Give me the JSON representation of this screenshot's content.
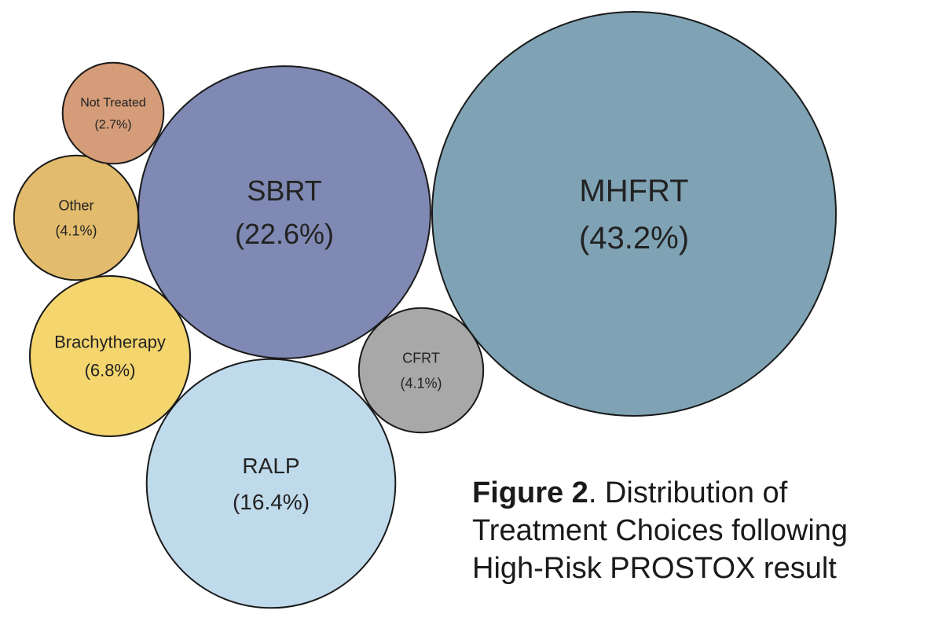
{
  "chart_data": {
    "type": "bubble",
    "title": "",
    "unit": "%",
    "bubbles": [
      {
        "label": "MHFRT",
        "value": 43.2,
        "display": "(43.2%)",
        "color": "#7fa3b5"
      },
      {
        "label": "SBRT",
        "value": 22.6,
        "display": "(22.6%)",
        "color": "#7f89b3"
      },
      {
        "label": "RALP",
        "value": 16.4,
        "display": "(16.4%)",
        "color": "#bfdaea"
      },
      {
        "label": "Brachytherapy",
        "value": 6.8,
        "display": "(6.8%)",
        "color": "#f4d56e"
      },
      {
        "label": "CFRT",
        "value": 4.1,
        "display": "(4.1%)",
        "color": "#a8a8a8"
      },
      {
        "label": "Other",
        "value": 4.1,
        "display": "(4.1%)",
        "color": "#e2bb6c"
      },
      {
        "label": "Not Treated",
        "value": 2.7,
        "display": "(2.7%)",
        "color": "#d49c78"
      }
    ]
  },
  "caption": {
    "label": "Figure 2",
    "text_first": ". Distribution of",
    "line2": "Treatment Choices following",
    "line3": "High-Risk PROSTOX result"
  }
}
